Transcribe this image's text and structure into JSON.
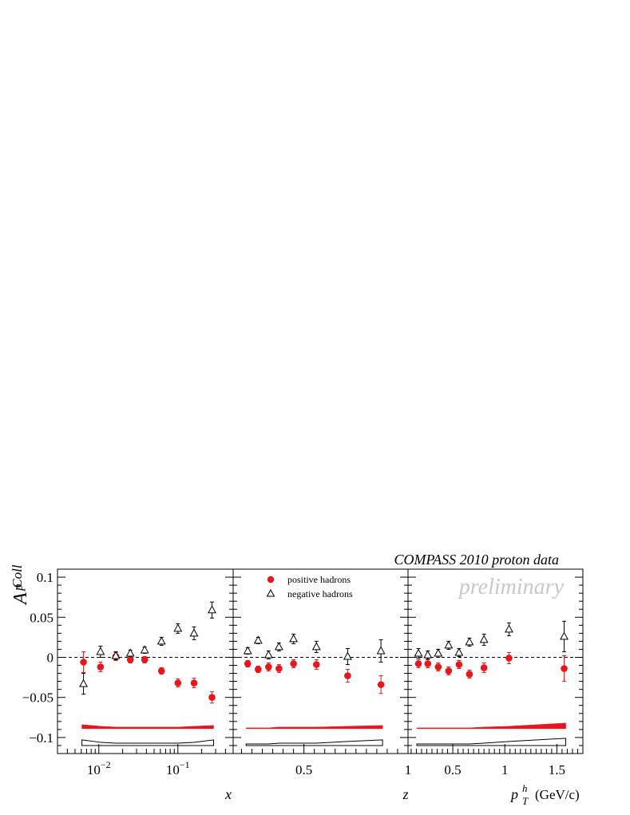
{
  "header": {
    "collaboration": "COMPASS 2010 proton data",
    "status": "preliminary"
  },
  "y_axis": {
    "label_main": "A",
    "label_sup": "p",
    "label_sub": "Coll",
    "ticks": [
      0.1,
      0.05,
      0,
      -0.05,
      -0.1
    ],
    "tick_labels": [
      "0.1",
      "0.05",
      "0",
      "−0.05",
      "−0.1"
    ],
    "ylim": [
      -0.12,
      0.11
    ]
  },
  "legend": {
    "placement": "top-left of middle panel",
    "entries": [
      {
        "label": "positive hadrons",
        "marker": "filled-circle",
        "color": "#e8161b"
      },
      {
        "label": "negative hadrons",
        "marker": "open-triangle",
        "color": "#000000"
      }
    ]
  },
  "colors": {
    "positive": "#e8161b",
    "negative": "#000000",
    "systematic_positive_band": "#e8161b",
    "systematic_negative_band": "none"
  },
  "chart_data": [
    {
      "type": "scatter",
      "panel": "x",
      "xlabel": "x",
      "xscale": "log",
      "xlim": [
        0.003,
        0.5
      ],
      "x_tick_labels": [
        {
          "value": 0.01,
          "base": "10",
          "exp": "−2"
        },
        {
          "value": 0.1,
          "base": "10",
          "exp": "−1"
        }
      ],
      "series": [
        {
          "name": "positive hadrons",
          "x": [
            0.0064,
            0.0105,
            0.0164,
            0.025,
            0.038,
            0.062,
            0.1,
            0.16,
            0.27
          ],
          "y": [
            -0.006,
            -0.012,
            0.001,
            -0.003,
            -0.003,
            -0.017,
            -0.032,
            -0.032,
            -0.05
          ],
          "err": [
            0.013,
            0.006,
            0.005,
            0.004,
            0.004,
            0.004,
            0.005,
            0.006,
            0.007
          ]
        },
        {
          "name": "negative hadrons",
          "x": [
            0.0064,
            0.0105,
            0.0164,
            0.025,
            0.038,
            0.062,
            0.1,
            0.16,
            0.27
          ],
          "y": [
            -0.033,
            0.007,
            0.002,
            0.005,
            0.009,
            0.02,
            0.036,
            0.03,
            0.059
          ],
          "err": [
            0.013,
            0.007,
            0.005,
            0.004,
            0.004,
            0.005,
            0.006,
            0.008,
            0.01
          ]
        }
      ],
      "systematic_bands": {
        "x": [
          0.0064,
          0.0105,
          0.0164,
          0.025,
          0.038,
          0.062,
          0.1,
          0.16,
          0.27
        ],
        "positive_low": [
          -0.089,
          -0.089,
          -0.089,
          -0.089,
          -0.089,
          -0.089,
          -0.089,
          -0.089,
          -0.089
        ],
        "positive_high": [
          -0.084,
          -0.086,
          -0.087,
          -0.087,
          -0.087,
          -0.087,
          -0.087,
          -0.086,
          -0.085
        ],
        "negative_low": [
          -0.11,
          -0.11,
          -0.11,
          -0.11,
          -0.11,
          -0.11,
          -0.11,
          -0.11,
          -0.11
        ],
        "negative_high": [
          -0.103,
          -0.106,
          -0.107,
          -0.107,
          -0.107,
          -0.107,
          -0.107,
          -0.106,
          -0.103
        ]
      }
    },
    {
      "type": "scatter",
      "panel": "z",
      "xlabel": "z",
      "xscale": "linear",
      "xlim": [
        0.16,
        1.0
      ],
      "x_tick_labels": [
        {
          "value": 0.5,
          "label": "0.5"
        },
        {
          "value": 1.0,
          "label": "1"
        }
      ],
      "series": [
        {
          "name": "positive hadrons",
          "x": [
            0.23,
            0.28,
            0.33,
            0.38,
            0.45,
            0.56,
            0.71,
            0.87
          ],
          "y": [
            -0.008,
            -0.015,
            -0.012,
            -0.014,
            -0.008,
            -0.009,
            -0.023,
            -0.034
          ],
          "err": [
            0.004,
            0.004,
            0.005,
            0.005,
            0.005,
            0.006,
            0.008,
            0.011
          ]
        },
        {
          "name": "negative hadrons",
          "x": [
            0.23,
            0.28,
            0.33,
            0.38,
            0.45,
            0.56,
            0.71,
            0.87
          ],
          "y": [
            0.008,
            0.021,
            0.003,
            0.013,
            0.023,
            0.013,
            0.001,
            0.008
          ],
          "err": [
            0.004,
            0.004,
            0.005,
            0.005,
            0.006,
            0.007,
            0.01,
            0.014
          ]
        }
      ],
      "systematic_bands": {
        "x": [
          0.23,
          0.28,
          0.33,
          0.38,
          0.45,
          0.56,
          0.71,
          0.87
        ],
        "positive_low": [
          -0.089,
          -0.089,
          -0.089,
          -0.089,
          -0.089,
          -0.089,
          -0.089,
          -0.089
        ],
        "positive_high": [
          -0.088,
          -0.088,
          -0.088,
          -0.087,
          -0.087,
          -0.087,
          -0.086,
          -0.085
        ],
        "negative_low": [
          -0.11,
          -0.11,
          -0.11,
          -0.11,
          -0.11,
          -0.11,
          -0.11,
          -0.11
        ],
        "negative_high": [
          -0.108,
          -0.108,
          -0.108,
          -0.107,
          -0.107,
          -0.107,
          -0.105,
          -0.103
        ]
      }
    },
    {
      "type": "scatter",
      "panel": "pT",
      "xlabel": "p",
      "xlabel_sup": "h",
      "xlabel_sub": "T",
      "xlabel_unit": "(GeV/c)",
      "xscale": "linear",
      "xlim": [
        0.07,
        1.75
      ],
      "x_tick_labels": [
        {
          "value": 0.5,
          "label": "0.5"
        },
        {
          "value": 1.0,
          "label": "1"
        },
        {
          "value": 1.5,
          "label": "1.5"
        }
      ],
      "series": [
        {
          "name": "positive hadrons",
          "x": [
            0.17,
            0.26,
            0.36,
            0.46,
            0.56,
            0.66,
            0.8,
            1.04,
            1.57
          ],
          "y": [
            -0.008,
            -0.008,
            -0.012,
            -0.017,
            -0.009,
            -0.021,
            -0.013,
            -0.001,
            -0.014
          ],
          "err": [
            0.005,
            0.005,
            0.005,
            0.005,
            0.005,
            0.005,
            0.006,
            0.007,
            0.016
          ]
        },
        {
          "name": "negative hadrons",
          "x": [
            0.17,
            0.26,
            0.36,
            0.46,
            0.56,
            0.66,
            0.8,
            1.04,
            1.57
          ],
          "y": [
            0.005,
            0.003,
            0.005,
            0.015,
            0.006,
            0.019,
            0.022,
            0.035,
            0.026
          ],
          "err": [
            0.006,
            0.005,
            0.005,
            0.005,
            0.005,
            0.005,
            0.007,
            0.008,
            0.019
          ]
        }
      ],
      "systematic_bands": {
        "x": [
          0.17,
          0.26,
          0.36,
          0.46,
          0.56,
          0.66,
          0.8,
          1.04,
          1.57
        ],
        "positive_low": [
          -0.089,
          -0.089,
          -0.089,
          -0.089,
          -0.089,
          -0.089,
          -0.089,
          -0.089,
          -0.089
        ],
        "positive_high": [
          -0.088,
          -0.088,
          -0.088,
          -0.088,
          -0.088,
          -0.088,
          -0.087,
          -0.086,
          -0.082
        ],
        "negative_low": [
          -0.11,
          -0.11,
          -0.11,
          -0.11,
          -0.11,
          -0.11,
          -0.11,
          -0.11,
          -0.11
        ],
        "negative_high": [
          -0.108,
          -0.108,
          -0.108,
          -0.108,
          -0.108,
          -0.108,
          -0.107,
          -0.105,
          -0.101
        ]
      }
    }
  ]
}
